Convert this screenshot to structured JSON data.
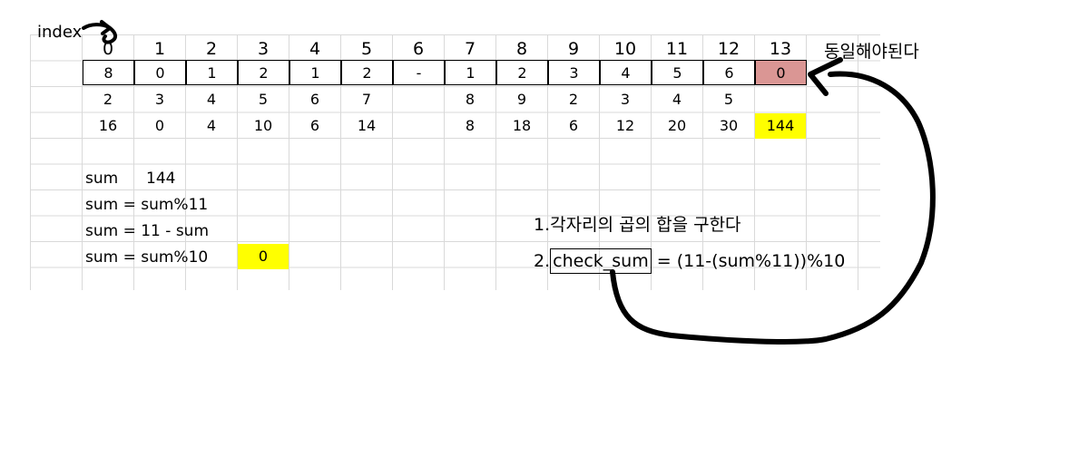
{
  "index_label": "index",
  "headers": [
    "0",
    "1",
    "2",
    "3",
    "4",
    "5",
    "6",
    "7",
    "8",
    "9",
    "10",
    "11",
    "12",
    "13"
  ],
  "digits": [
    "8",
    "0",
    "1",
    "2",
    "1",
    "2",
    "-",
    "1",
    "2",
    "3",
    "4",
    "5",
    "6",
    "0"
  ],
  "weights": [
    "2",
    "3",
    "4",
    "5",
    "6",
    "7",
    "",
    "8",
    "9",
    "2",
    "3",
    "4",
    "5",
    ""
  ],
  "products": [
    "16",
    "0",
    "4",
    "10",
    "6",
    "14",
    "",
    "8",
    "18",
    "6",
    "12",
    "20",
    "30",
    "144"
  ],
  "same_note": "동일해야된다",
  "sum_lines": {
    "l1_label": "sum",
    "l1_value": "144",
    "l2": "sum = sum%11",
    "l3": "sum = 11 - sum",
    "l4": "sum = sum%10",
    "l4_value": "0"
  },
  "steps": {
    "s1": "1.각자리의 곱의 합을 구한다",
    "s2_prefix": "2.",
    "s2_box": "check_sum",
    "s2_rest": " = (11-(sum%11))%10"
  },
  "colors": {
    "highlight_yellow": "#ffff00",
    "highlight_red": "#da9694"
  }
}
